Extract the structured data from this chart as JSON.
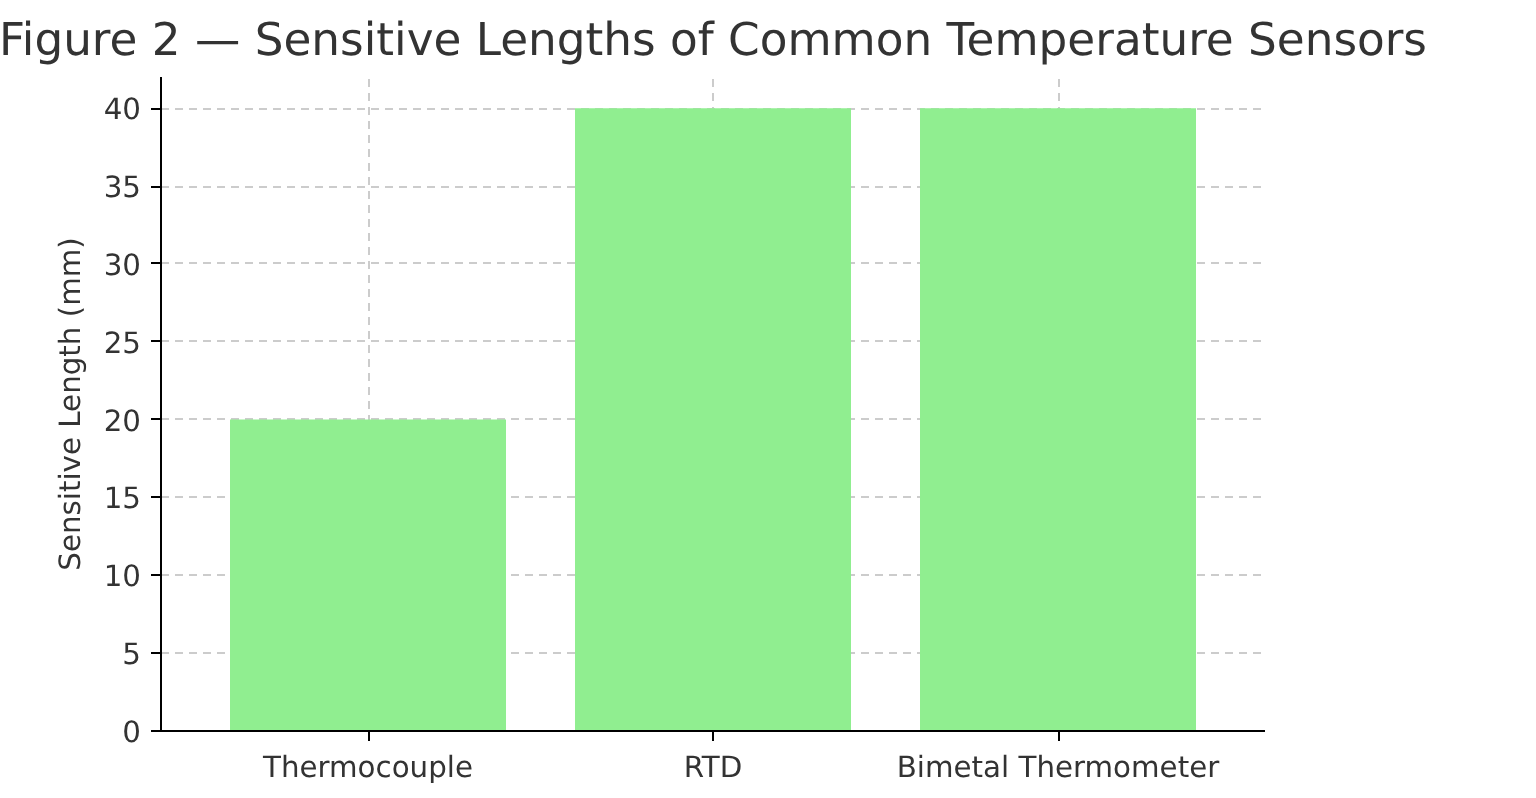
{
  "chart_data": {
    "type": "bar",
    "title": "Figure 2 — Sensitive Lengths of Common Temperature Sensors",
    "ylabel": "Sensitive Length (mm)",
    "categories": [
      "Thermocouple",
      "RTD",
      "Bimetal Thermometer"
    ],
    "values": [
      20,
      40,
      40
    ],
    "color": "#90ee90",
    "ylim": [
      0,
      42
    ],
    "yticks": [
      0,
      5,
      10,
      15,
      20,
      25,
      30,
      35,
      40
    ],
    "grid": true
  }
}
